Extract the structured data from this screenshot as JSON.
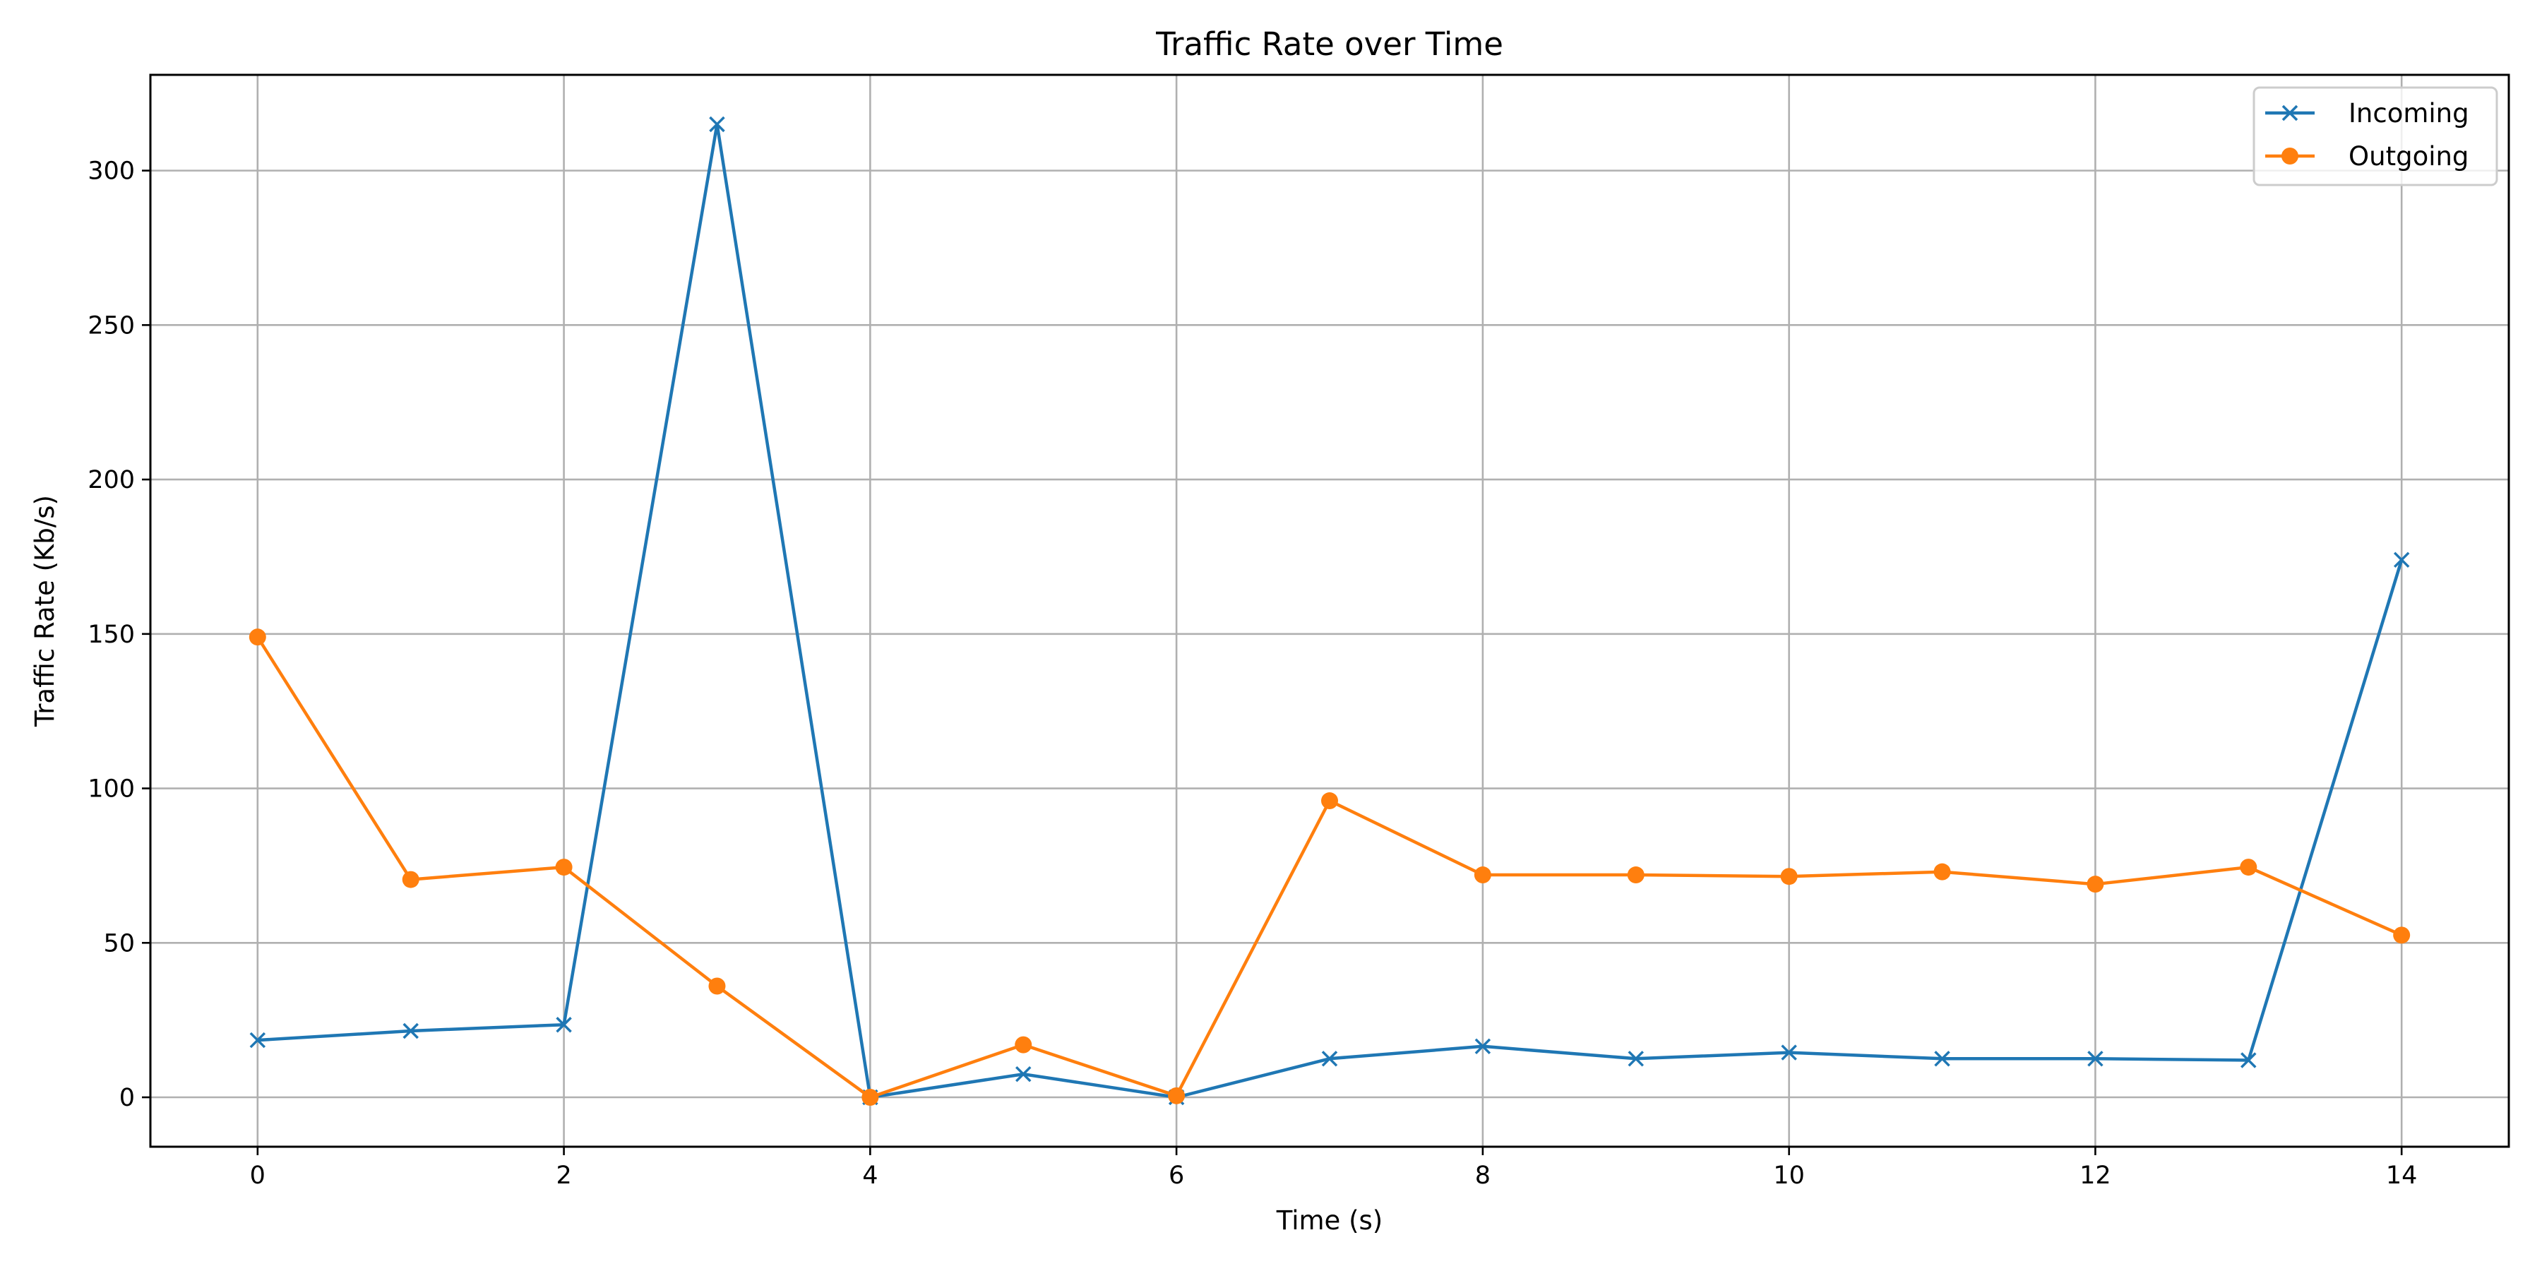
{
  "chart_data": {
    "type": "line",
    "title": "Traffic Rate over Time",
    "xlabel": "Time (s)",
    "ylabel": "Traffic Rate (Kb/s)",
    "x": [
      0,
      1,
      2,
      3,
      4,
      5,
      6,
      7,
      8,
      9,
      10,
      11,
      12,
      13,
      14
    ],
    "xlim": [
      -0.7,
      14.7
    ],
    "ylim": [
      -16,
      331
    ],
    "xticks": [
      0,
      2,
      4,
      6,
      8,
      10,
      12,
      14
    ],
    "yticks": [
      0,
      50,
      100,
      150,
      200,
      250,
      300
    ],
    "grid": true,
    "legend_position": "top-right",
    "series": [
      {
        "name": "Incoming",
        "color": "#1f77b4",
        "marker": "x",
        "values": [
          18.5,
          21.5,
          23.5,
          315,
          0,
          7.5,
          0,
          12.5,
          16.5,
          12.5,
          14.5,
          12.5,
          12.5,
          12,
          174
        ]
      },
      {
        "name": "Outgoing",
        "color": "#ff7f0e",
        "marker": "circle",
        "values": [
          149,
          70.5,
          74.5,
          36,
          0,
          17,
          0.5,
          96,
          72,
          72,
          71.5,
          73,
          69,
          74.5,
          52.5
        ]
      }
    ]
  }
}
